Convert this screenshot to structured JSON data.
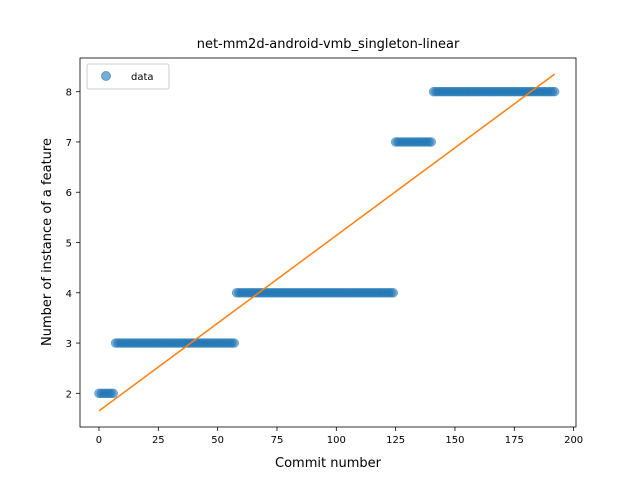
{
  "chart_data": {
    "type": "scatter",
    "title": "net-mm2d-android-vmb_singleton-linear",
    "xlabel": "Commit number",
    "ylabel": "Number of instance of a feature",
    "xlim": [
      -8,
      201
    ],
    "ylim": [
      1.33,
      8.67
    ],
    "xticks": [
      0,
      25,
      50,
      75,
      100,
      125,
      150,
      175,
      200
    ],
    "yticks": [
      2,
      3,
      4,
      5,
      6,
      7,
      8
    ],
    "grid": false,
    "legend": {
      "placement": "top-left",
      "entries": [
        "data"
      ]
    },
    "series": [
      {
        "name": "data",
        "kind": "scatter",
        "color": "#1f77b4",
        "segments": [
          {
            "y": 2,
            "x_start": 0,
            "x_end": 6
          },
          {
            "y": 3,
            "x_start": 7,
            "x_end": 57
          },
          {
            "y": 4,
            "x_start": 58,
            "x_end": 124
          },
          {
            "y": 7,
            "x_start": 125,
            "x_end": 140
          },
          {
            "y": 8,
            "x_start": 141,
            "x_end": 192
          }
        ]
      },
      {
        "kind": "line",
        "color": "#ff7f0e",
        "x": [
          0,
          192
        ],
        "y": [
          1.65,
          8.35
        ]
      }
    ]
  }
}
